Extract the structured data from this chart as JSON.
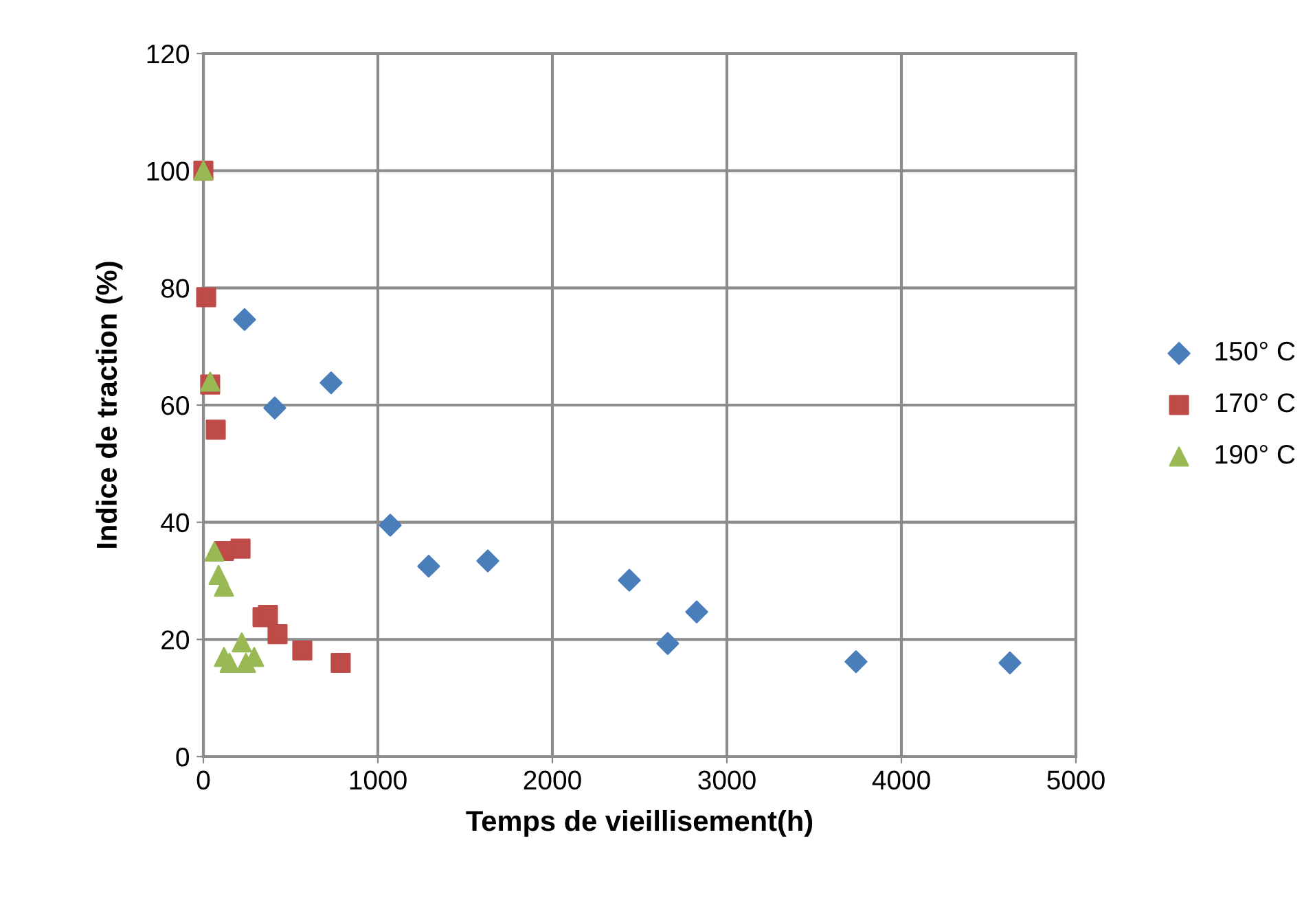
{
  "chart_data": {
    "type": "scatter",
    "xlabel": "Temps de vieillisement(h)",
    "ylabel": "Indice de traction (%)",
    "xlim": [
      0,
      5000
    ],
    "xticks": [
      0,
      1000,
      2000,
      3000,
      4000,
      5000
    ],
    "ylim": [
      0,
      120
    ],
    "yticks": [
      0,
      20,
      40,
      60,
      80,
      100,
      120
    ],
    "grid": true,
    "legend": "right",
    "series": [
      {
        "name": "150° C",
        "color": "#4a7ebb",
        "marker": "diamond",
        "x": [
          236,
          409,
          732,
          1071,
          1291,
          1630,
          2441,
          2661,
          2827,
          3740,
          4622
        ],
        "values": [
          74.6,
          59.5,
          63.8,
          39.5,
          32.5,
          33.4,
          30.1,
          19.3,
          24.7,
          16.2,
          16
        ]
      },
      {
        "name": "170° C",
        "color": "#be4b48",
        "marker": "square",
        "x": [
          0,
          16,
          39,
          71,
          118,
          213,
          339,
          370,
          425,
          567,
          787
        ],
        "values": [
          100,
          78.4,
          63.5,
          55.8,
          35.1,
          35.5,
          23.8,
          24.2,
          20.9,
          18.1,
          16
        ]
      },
      {
        "name": "190° C",
        "color": "#98b954",
        "marker": "triangle",
        "x": [
          0,
          39,
          63,
          87,
          118,
          118,
          150,
          220,
          244,
          291
        ],
        "values": [
          100,
          64,
          35,
          31,
          29,
          17,
          16,
          19.5,
          16,
          17
        ]
      }
    ]
  }
}
